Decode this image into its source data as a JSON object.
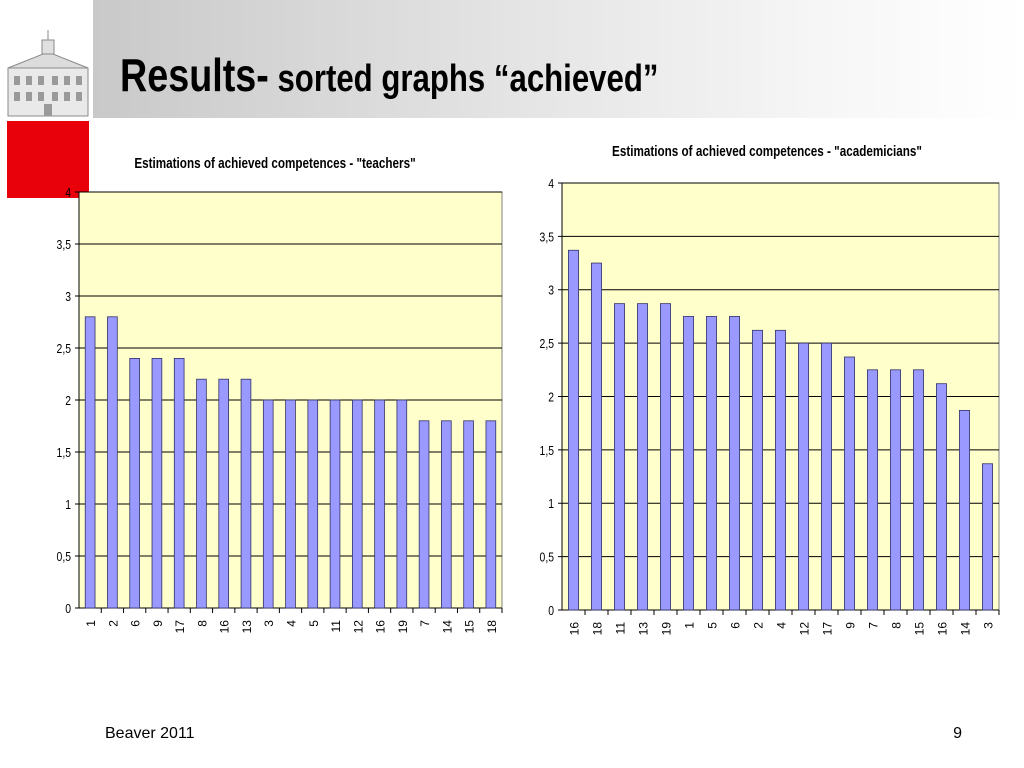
{
  "slide": {
    "title_main": "Results-",
    "title_sub": " sorted graphs “achieved”",
    "footer_left": "Beaver 2011",
    "page_number": "9"
  },
  "colors": {
    "plot_bg": "#ffffcc",
    "bar_fill": "#9999ff",
    "bar_stroke": "#333366",
    "accent_red": "#e8000b",
    "grid": "#000000"
  },
  "chart_data": [
    {
      "type": "bar",
      "title": "Estimations of achieved competences - \"teachers\"",
      "categories": [
        "1",
        "2",
        "6",
        "9",
        "17",
        "8",
        "16",
        "13",
        "3",
        "4",
        "5",
        "11",
        "12",
        "16",
        "19",
        "7",
        "14",
        "15",
        "18"
      ],
      "values": [
        2.8,
        2.8,
        2.4,
        2.4,
        2.4,
        2.2,
        2.2,
        2.2,
        2.0,
        2.0,
        2.0,
        2.0,
        2.0,
        2.0,
        2.0,
        1.8,
        1.8,
        1.8,
        1.8
      ],
      "ylim": [
        0,
        4
      ],
      "yticks": [
        "0",
        "0,5",
        "1",
        "1,5",
        "2",
        "2,5",
        "3",
        "3,5",
        "4"
      ],
      "grid": true,
      "legend": "none"
    },
    {
      "type": "bar",
      "title": "Estimations of achieved competences - \"academicians\"",
      "categories": [
        "16",
        "18",
        "11",
        "13",
        "19",
        "1",
        "5",
        "6",
        "2",
        "4",
        "12",
        "17",
        "9",
        "7",
        "8",
        "15",
        "16",
        "14",
        "3"
      ],
      "values": [
        3.37,
        3.25,
        2.87,
        2.87,
        2.87,
        2.75,
        2.75,
        2.75,
        2.62,
        2.62,
        2.5,
        2.5,
        2.37,
        2.25,
        2.25,
        2.25,
        2.12,
        1.87,
        1.37
      ],
      "ylim": [
        0,
        4
      ],
      "yticks": [
        "0",
        "0,5",
        "1",
        "1,5",
        "2",
        "2,5",
        "3",
        "3,5",
        "4"
      ],
      "grid": true,
      "legend": "none"
    }
  ]
}
